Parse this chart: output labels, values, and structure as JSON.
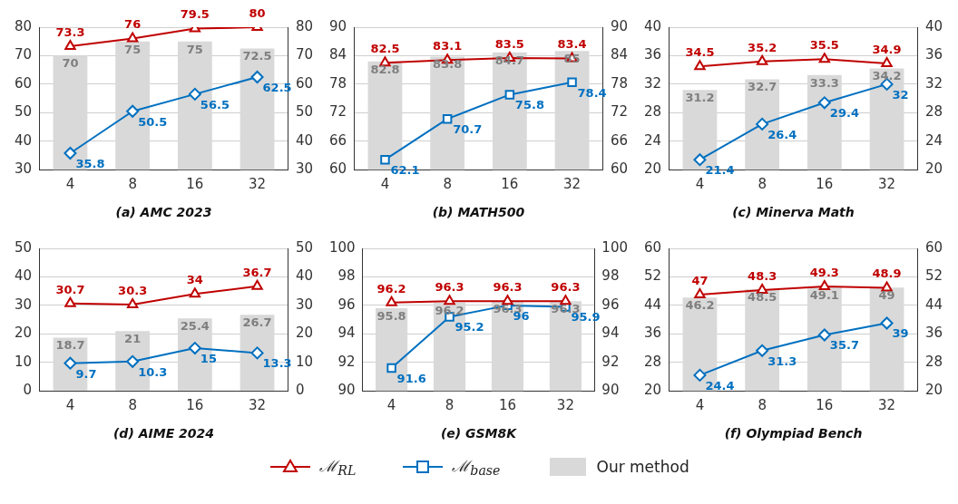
{
  "chart_data": [
    {
      "type": "bar",
      "title": "(a) AMC 2023",
      "categories": [
        "4",
        "8",
        "16",
        "32"
      ],
      "ylim": [
        30,
        80
      ],
      "yticks": [
        30,
        40,
        50,
        60,
        70,
        80
      ],
      "y2lim": [
        30,
        80
      ],
      "y2ticks": [
        30,
        40,
        50,
        60,
        70,
        80
      ],
      "grid": "y",
      "data_labels": true,
      "series": [
        {
          "color": "#d9d9d9",
          "values": [
            70,
            75,
            75,
            72.5
          ]
        },
        {
          "type": "line",
          "color": "#c00000",
          "marker": "triangle",
          "values": [
            73.3,
            76,
            79.5,
            80
          ]
        },
        {
          "type": "line",
          "color": "#0070c0",
          "marker": "diamond",
          "values": [
            35.8,
            50.5,
            56.5,
            62.5
          ]
        }
      ]
    },
    {
      "type": "bar",
      "title": "(b) MATH500",
      "categories": [
        "4",
        "8",
        "16",
        "32"
      ],
      "ylim": [
        60,
        90
      ],
      "yticks": [
        60,
        66,
        72,
        78,
        84,
        90
      ],
      "y2lim": [
        60,
        90
      ],
      "y2ticks": [
        60,
        66,
        72,
        78,
        84,
        90
      ],
      "grid": "y",
      "data_labels": true,
      "series": [
        {
          "color": "#d9d9d9",
          "values": [
            82.8,
            83.8,
            84.7,
            85
          ]
        },
        {
          "type": "line",
          "color": "#c00000",
          "marker": "triangle",
          "values": [
            82.5,
            83.1,
            83.5,
            83.4
          ]
        },
        {
          "type": "line",
          "color": "#0070c0",
          "marker": "square",
          "values": [
            62.1,
            70.7,
            75.8,
            78.4
          ]
        }
      ]
    },
    {
      "type": "bar",
      "title": "(c) Minerva Math",
      "categories": [
        "4",
        "8",
        "16",
        "32"
      ],
      "ylim": [
        20,
        40
      ],
      "yticks": [
        20,
        24,
        28,
        32,
        36,
        40
      ],
      "y2lim": [
        20,
        40
      ],
      "y2ticks": [
        20,
        24,
        28,
        32,
        36,
        40
      ],
      "grid": "y",
      "data_labels": true,
      "series": [
        {
          "color": "#d9d9d9",
          "values": [
            31.2,
            32.7,
            33.3,
            34.2
          ]
        },
        {
          "type": "line",
          "color": "#c00000",
          "marker": "triangle",
          "values": [
            34.5,
            35.2,
            35.5,
            34.9
          ]
        },
        {
          "type": "line",
          "color": "#0070c0",
          "marker": "diamond",
          "values": [
            21.4,
            26.4,
            29.4,
            32
          ]
        }
      ]
    },
    {
      "type": "bar",
      "title": "(d) AIME 2024",
      "categories": [
        "4",
        "8",
        "16",
        "32"
      ],
      "ylim": [
        0,
        50
      ],
      "yticks": [
        0,
        10,
        20,
        30,
        40,
        50
      ],
      "y2lim": [
        0,
        50
      ],
      "y2ticks": [
        0,
        10,
        20,
        30,
        40,
        50
      ],
      "grid": "y",
      "data_labels": true,
      "series": [
        {
          "color": "#d9d9d9",
          "values": [
            18.7,
            21,
            25.4,
            26.7
          ]
        },
        {
          "type": "line",
          "color": "#c00000",
          "marker": "triangle",
          "values": [
            30.7,
            30.3,
            34,
            36.7
          ]
        },
        {
          "type": "line",
          "color": "#0070c0",
          "marker": "diamond",
          "values": [
            9.7,
            10.3,
            15,
            13.3
          ]
        }
      ]
    },
    {
      "type": "bar",
      "title": "(e) GSM8K",
      "categories": [
        "4",
        "8",
        "16",
        "32"
      ],
      "ylim": [
        90,
        100
      ],
      "yticks": [
        90,
        92,
        94,
        96,
        98,
        100
      ],
      "y2lim": [
        90,
        100
      ],
      "y2ticks": [
        90,
        92,
        94,
        96,
        98,
        100
      ],
      "grid": "y",
      "data_labels": true,
      "legend": "bottom",
      "series": [
        {
          "name": "Our method",
          "color": "#d9d9d9",
          "values": [
            95.8,
            96.2,
            96.3,
            96.3
          ]
        },
        {
          "name": "ℳ$_{RL}$",
          "type": "line",
          "color": "#c00000",
          "marker": "triangle",
          "values": [
            96.2,
            96.3,
            96.3,
            96.3
          ]
        },
        {
          "name": "ℳ$_{base}$",
          "type": "line",
          "color": "#0070c0",
          "marker": "square",
          "values": [
            91.6,
            95.2,
            96,
            95.9
          ]
        }
      ]
    },
    {
      "type": "bar",
      "title": "(f) Olympiad Bench",
      "categories": [
        "4",
        "8",
        "16",
        "32"
      ],
      "ylim": [
        20,
        60
      ],
      "yticks": [
        20,
        28,
        36,
        44,
        52,
        60
      ],
      "y2lim": [
        20,
        60
      ],
      "y2ticks": [
        20,
        28,
        36,
        44,
        52,
        60
      ],
      "grid": "y",
      "data_labels": true,
      "series": [
        {
          "color": "#d9d9d9",
          "values": [
            46.2,
            48.5,
            49.1,
            49
          ]
        },
        {
          "type": "line",
          "color": "#c00000",
          "marker": "triangle",
          "values": [
            47,
            48.3,
            49.3,
            48.9
          ]
        },
        {
          "type": "line",
          "color": "#0070c0",
          "marker": "diamond",
          "values": [
            24.4,
            31.3,
            35.7,
            39
          ]
        }
      ]
    }
  ]
}
